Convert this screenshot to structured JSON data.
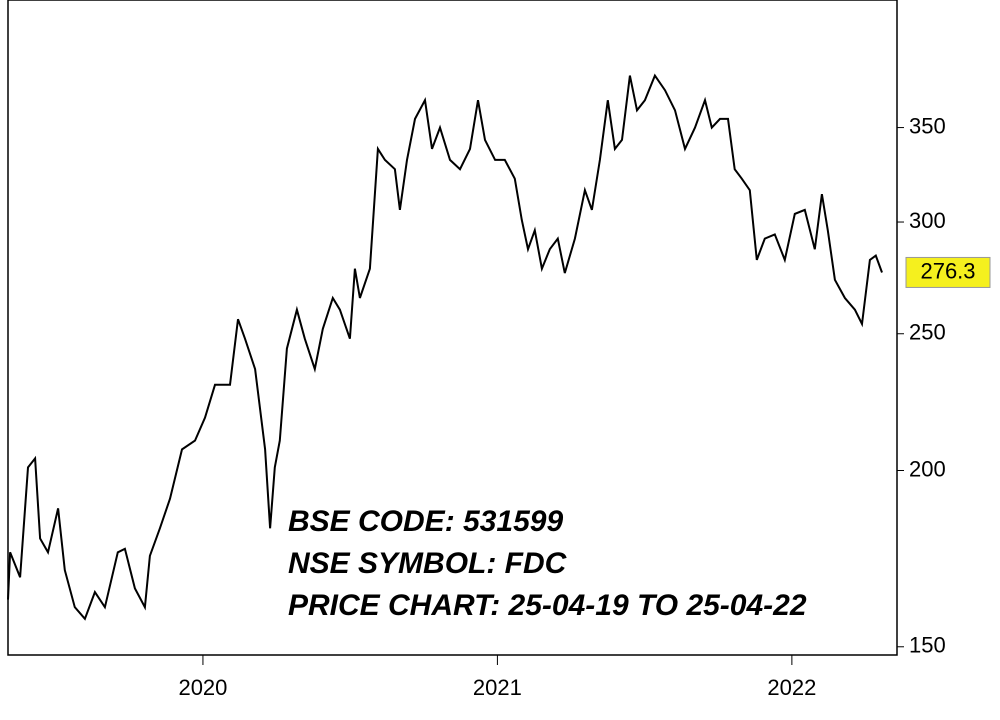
{
  "chart_data": {
    "type": "line",
    "yscale": "log",
    "grid": false,
    "xlim": [
      2019.338,
      2022.357
    ],
    "xticks": [
      2020,
      2021,
      2022
    ],
    "ylim": [
      148,
      431
    ],
    "yticks": [
      150,
      200,
      250,
      300,
      350
    ],
    "annotations": [
      "BSE CODE: 531599",
      "NSE SYMBOL: FDC",
      "PRICE CHART: 25-04-19 TO 25-04-22"
    ],
    "last_price": 276.3,
    "series": [
      {
        "color": "#000000",
        "x": [
          2019.338,
          2019.345,
          2019.379,
          2019.406,
          2019.43,
          2019.447,
          2019.474,
          2019.508,
          2019.531,
          2019.565,
          2019.599,
          2019.633,
          2019.667,
          2019.711,
          2019.735,
          2019.769,
          2019.803,
          2019.82,
          2019.854,
          2019.888,
          2019.929,
          2019.973,
          2020.007,
          2020.041,
          2020.092,
          2020.119,
          2020.143,
          2020.177,
          2020.211,
          2020.228,
          2020.244,
          2020.261,
          2020.285,
          2020.319,
          2020.346,
          2020.38,
          2020.407,
          2020.441,
          2020.465,
          2020.499,
          2020.516,
          2020.533,
          2020.567,
          2020.594,
          2020.618,
          2020.652,
          2020.669,
          2020.693,
          2020.72,
          2020.754,
          2020.778,
          2020.805,
          2020.839,
          2020.873,
          2020.907,
          2020.934,
          2020.958,
          2020.992,
          2021.025,
          2021.059,
          2021.083,
          2021.104,
          2021.127,
          2021.151,
          2021.178,
          2021.205,
          2021.229,
          2021.263,
          2021.297,
          2021.321,
          2021.348,
          2021.375,
          2021.399,
          2021.423,
          2021.45,
          2021.474,
          2021.501,
          2021.535,
          2021.569,
          2021.603,
          2021.637,
          2021.671,
          2021.705,
          2021.728,
          2021.756,
          2021.783,
          2021.806,
          2021.83,
          2021.857,
          2021.881,
          2021.908,
          2021.942,
          2021.976,
          2022.01,
          2022.044,
          2022.078,
          2022.102,
          2022.122,
          2022.146,
          2022.18,
          2022.214,
          2022.238,
          2022.265,
          2022.285,
          2022.306
        ],
        "values": [
          162,
          175,
          168,
          201,
          204,
          179,
          175,
          188,
          170,
          160,
          157,
          164,
          160,
          175,
          176,
          165,
          160,
          174,
          182,
          191,
          207,
          210,
          218,
          230,
          230,
          256,
          248,
          236,
          207,
          182,
          201,
          210,
          244,
          260,
          248,
          236,
          252,
          265,
          260,
          248,
          278,
          265,
          278,
          338,
          332,
          327,
          306,
          332,
          355,
          366,
          338,
          350,
          332,
          327,
          338,
          366,
          343,
          332,
          332,
          322,
          301,
          287,
          296,
          278,
          287,
          292,
          276,
          292,
          316,
          306,
          332,
          366,
          338,
          343,
          381,
          360,
          366,
          381,
          372,
          360,
          338,
          350,
          366,
          350,
          355,
          355,
          327,
          322,
          316,
          282,
          292,
          294,
          282,
          304,
          306,
          287,
          314,
          296,
          273,
          265,
          260,
          254,
          282,
          284,
          276.3
        ]
      }
    ]
  }
}
